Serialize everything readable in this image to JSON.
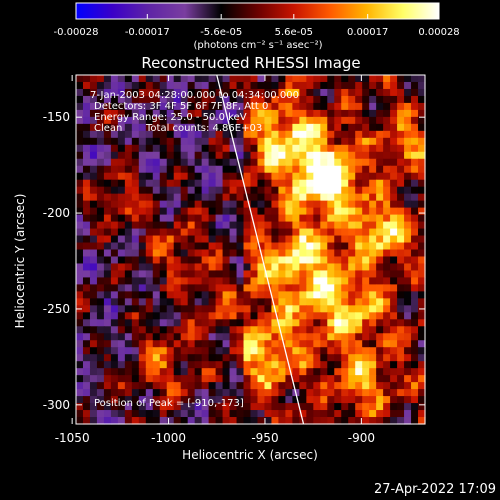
{
  "chart_data": {
    "type": "heatmap",
    "title": "Reconstructed RHESSI Image",
    "xlabel": "Heliocentric X (arcsec)",
    "ylabel": "Heliocentric Y (arcsec)",
    "xlim": [
      -1048,
      -867
    ],
    "ylim": [
      -310,
      -128
    ],
    "x_ticks": [
      -1050,
      -1000,
      -950,
      -900
    ],
    "x_tick_labels": [
      "-1050",
      "-1000",
      "-950",
      "-900"
    ],
    "y_ticks": [
      -150,
      -200,
      -250,
      -300
    ],
    "y_tick_labels": [
      "-150",
      "-200",
      "-250",
      "-300"
    ],
    "colorbar": {
      "min": -0.00028,
      "max": 0.00028,
      "ticks": [
        -0.00028,
        -0.00017,
        -5.6e-05,
        5.6e-05,
        0.00017,
        0.00028
      ],
      "tick_labels": [
        "-0.00028",
        "-0.00017",
        "-5.6e-05",
        "5.6e-05",
        "0.00017",
        "0.00028"
      ],
      "unit_label": "(photons cm⁻² s⁻¹ asec⁻²)",
      "colors": [
        "#0000ff",
        "#3a00c8",
        "#5e24a6",
        "#7a3ea0",
        "#000000",
        "#6a0000",
        "#c81400",
        "#ff5a00",
        "#ffb400",
        "#ffff66",
        "#ffffff"
      ]
    },
    "annotations": {
      "time": "7-Jan-2003 04:28:00.000 to 04:34:00.000",
      "detectors": "Detectors: 3F 4F 5F 6F 7F 8F, Att 0",
      "energy": "Energy Range: 25.0 - 50.0 keV",
      "method": "Clean",
      "counts": "Total counts: 4.86E+03",
      "peak": "Position of Peak = [-910,-173]"
    },
    "limb_line": {
      "x": [
        -975,
        -930
      ],
      "y": [
        -128,
        -310
      ]
    },
    "peak": {
      "x": -910,
      "y": -173
    }
  },
  "footer": {
    "date": "27-Apr-2022 17:09"
  }
}
